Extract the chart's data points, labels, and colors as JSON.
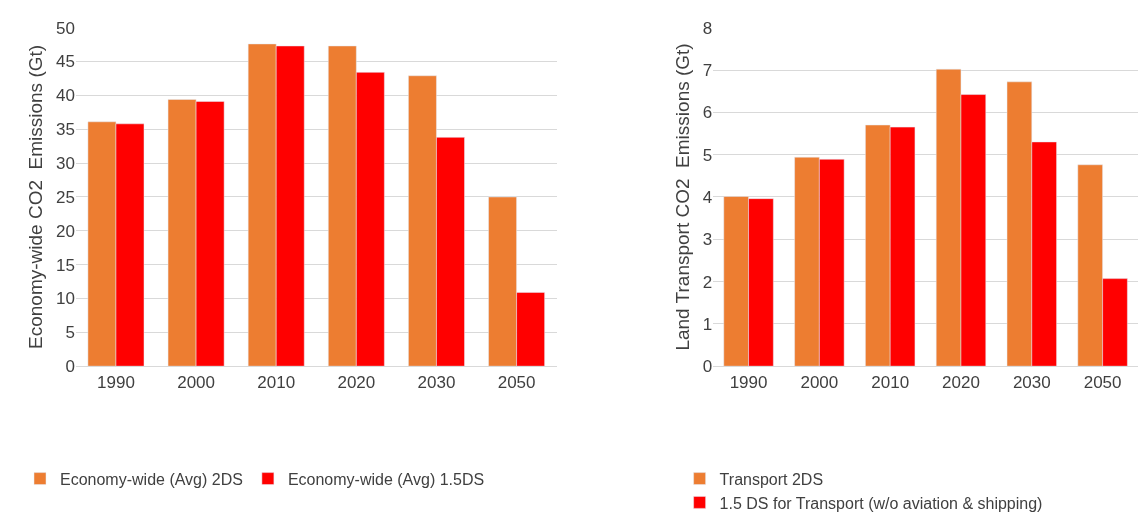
{
  "chart_data": [
    {
      "type": "bar",
      "categories": [
        "1990",
        "2000",
        "2010",
        "2020",
        "2030",
        "2050"
      ],
      "ylabel": "Economy-wide CO2  Emissions (Gt)",
      "ylim": [
        0,
        50
      ],
      "yticks": [
        0,
        5,
        10,
        15,
        20,
        25,
        30,
        35,
        40,
        45,
        50
      ],
      "grid": "y",
      "legend": "bottom",
      "series": [
        {
          "name": "Economy-wide (Avg) 2DS",
          "color": "#ed7d31",
          "values": [
            36.1,
            39.4,
            47.6,
            47.3,
            42.9,
            25.0
          ]
        },
        {
          "name": "Economy-wide (Avg) 1.5DS",
          "color": "#ff0000",
          "values": [
            35.8,
            39.1,
            47.3,
            43.4,
            33.8,
            10.9
          ]
        }
      ]
    },
    {
      "type": "bar",
      "categories": [
        "1990",
        "2000",
        "2010",
        "2020",
        "2030",
        "2050"
      ],
      "ylabel": "Land Transport CO2  Emissions (Gt)",
      "ylim": [
        0,
        8
      ],
      "yticks": [
        0,
        1,
        2,
        3,
        4,
        5,
        6,
        7,
        8
      ],
      "grid": "y",
      "legend": "bottom",
      "series": [
        {
          "name": "Transport 2DS",
          "color": "#ed7d31",
          "values": [
            4.01,
            4.94,
            5.7,
            7.02,
            6.72,
            4.76
          ]
        },
        {
          "name": "1.5 DS for Transport (w/o aviation & shipping)",
          "color": "#ff0000",
          "values": [
            3.96,
            4.89,
            5.65,
            6.42,
            5.3,
            2.07
          ]
        }
      ]
    }
  ]
}
